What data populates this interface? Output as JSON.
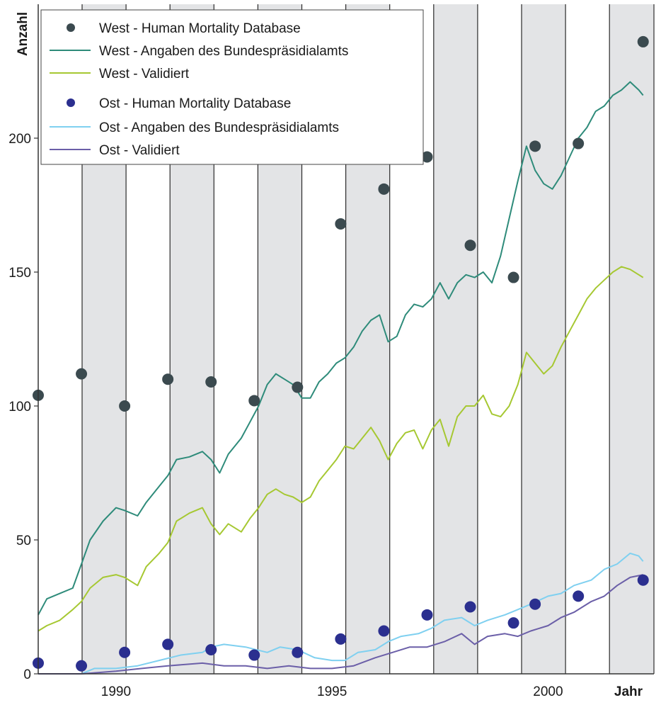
{
  "chart_data": {
    "type": "line",
    "title": "",
    "xlabel": "Jahr",
    "ylabel": "Anzahl",
    "xlim": [
      1988.2,
      2002.45
    ],
    "ylim": [
      0,
      250
    ],
    "x_ticks": [
      {
        "value": 1990,
        "label": "1990"
      },
      {
        "value": 1995,
        "label": "1995"
      },
      {
        "value": 2000,
        "label": "2000"
      }
    ],
    "y_ticks": [
      {
        "value": 0,
        "label": "0"
      },
      {
        "value": 50,
        "label": "50"
      },
      {
        "value": 100,
        "label": "100"
      },
      {
        "value": 150,
        "label": "150"
      },
      {
        "value": 200,
        "label": "200"
      }
    ],
    "grid": "vertical lines each half-year, alternating grey and white bands",
    "legend_position": "top-left",
    "series": [
      {
        "name": "West - Human Mortality Database",
        "kind": "points",
        "color": "#3b4a4f",
        "points": [
          [
            1988.2,
            104
          ],
          [
            1989.2,
            112
          ],
          [
            1990.2,
            100
          ],
          [
            1991.2,
            110
          ],
          [
            1992.2,
            109
          ],
          [
            1993.2,
            102
          ],
          [
            1994.2,
            107
          ],
          [
            1995.2,
            168
          ],
          [
            1996.2,
            181
          ],
          [
            1997.2,
            193
          ],
          [
            1998.2,
            160
          ],
          [
            1999.2,
            148
          ],
          [
            1999.7,
            197
          ],
          [
            2000.7,
            198
          ],
          [
            2002.2,
            236
          ]
        ]
      },
      {
        "name": "West - Angaben des Bundespräsidialamts",
        "kind": "line",
        "color": "#2e8b7a",
        "points": [
          [
            1988.2,
            22
          ],
          [
            1988.4,
            28
          ],
          [
            1988.7,
            30
          ],
          [
            1989.0,
            32
          ],
          [
            1989.2,
            41
          ],
          [
            1989.4,
            50
          ],
          [
            1989.7,
            57
          ],
          [
            1990.0,
            62
          ],
          [
            1990.2,
            61
          ],
          [
            1990.5,
            59
          ],
          [
            1990.7,
            64
          ],
          [
            1991.0,
            70
          ],
          [
            1991.2,
            74
          ],
          [
            1991.4,
            80
          ],
          [
            1991.7,
            81
          ],
          [
            1992.0,
            83
          ],
          [
            1992.2,
            80
          ],
          [
            1992.4,
            75
          ],
          [
            1992.6,
            82
          ],
          [
            1992.9,
            88
          ],
          [
            1993.1,
            94
          ],
          [
            1993.3,
            100
          ],
          [
            1993.5,
            108
          ],
          [
            1993.7,
            112
          ],
          [
            1993.9,
            110
          ],
          [
            1994.1,
            108
          ],
          [
            1994.3,
            103
          ],
          [
            1994.5,
            103
          ],
          [
            1994.7,
            109
          ],
          [
            1994.9,
            112
          ],
          [
            1995.1,
            116
          ],
          [
            1995.3,
            118
          ],
          [
            1995.5,
            122
          ],
          [
            1995.7,
            128
          ],
          [
            1995.9,
            132
          ],
          [
            1996.1,
            134
          ],
          [
            1996.3,
            124
          ],
          [
            1996.5,
            126
          ],
          [
            1996.7,
            134
          ],
          [
            1996.9,
            138
          ],
          [
            1997.1,
            137
          ],
          [
            1997.3,
            140
          ],
          [
            1997.5,
            146
          ],
          [
            1997.7,
            140
          ],
          [
            1997.9,
            146
          ],
          [
            1998.1,
            149
          ],
          [
            1998.3,
            148
          ],
          [
            1998.5,
            150
          ],
          [
            1998.7,
            146
          ],
          [
            1998.9,
            156
          ],
          [
            1999.1,
            170
          ],
          [
            1999.3,
            184
          ],
          [
            1999.5,
            197
          ],
          [
            1999.7,
            188
          ],
          [
            1999.9,
            183
          ],
          [
            2000.1,
            181
          ],
          [
            2000.3,
            186
          ],
          [
            2000.5,
            193
          ],
          [
            2000.7,
            200
          ],
          [
            2000.9,
            204
          ],
          [
            2001.1,
            210
          ],
          [
            2001.3,
            212
          ],
          [
            2001.5,
            216
          ],
          [
            2001.7,
            218
          ],
          [
            2001.9,
            221
          ],
          [
            2002.1,
            218
          ],
          [
            2002.2,
            216
          ]
        ]
      },
      {
        "name": "West - Validiert",
        "kind": "line",
        "color": "#a6c832",
        "points": [
          [
            1988.2,
            16
          ],
          [
            1988.4,
            18
          ],
          [
            1988.7,
            20
          ],
          [
            1989.0,
            24
          ],
          [
            1989.2,
            27
          ],
          [
            1989.4,
            32
          ],
          [
            1989.7,
            36
          ],
          [
            1990.0,
            37
          ],
          [
            1990.2,
            36
          ],
          [
            1990.5,
            33
          ],
          [
            1990.7,
            40
          ],
          [
            1991.0,
            45
          ],
          [
            1991.2,
            49
          ],
          [
            1991.4,
            57
          ],
          [
            1991.7,
            60
          ],
          [
            1992.0,
            62
          ],
          [
            1992.2,
            56
          ],
          [
            1992.4,
            52
          ],
          [
            1992.6,
            56
          ],
          [
            1992.9,
            53
          ],
          [
            1993.1,
            58
          ],
          [
            1993.3,
            62
          ],
          [
            1993.5,
            67
          ],
          [
            1993.7,
            69
          ],
          [
            1993.9,
            67
          ],
          [
            1994.1,
            66
          ],
          [
            1994.3,
            64
          ],
          [
            1994.5,
            66
          ],
          [
            1994.7,
            72
          ],
          [
            1994.9,
            76
          ],
          [
            1995.1,
            80
          ],
          [
            1995.3,
            85
          ],
          [
            1995.5,
            84
          ],
          [
            1995.7,
            88
          ],
          [
            1995.9,
            92
          ],
          [
            1996.1,
            87
          ],
          [
            1996.3,
            80
          ],
          [
            1996.5,
            86
          ],
          [
            1996.7,
            90
          ],
          [
            1996.9,
            91
          ],
          [
            1997.1,
            84
          ],
          [
            1997.3,
            91
          ],
          [
            1997.5,
            95
          ],
          [
            1997.7,
            85
          ],
          [
            1997.9,
            96
          ],
          [
            1998.1,
            100
          ],
          [
            1998.3,
            100
          ],
          [
            1998.5,
            104
          ],
          [
            1998.7,
            97
          ],
          [
            1998.9,
            96
          ],
          [
            1999.1,
            100
          ],
          [
            1999.3,
            108
          ],
          [
            1999.5,
            120
          ],
          [
            1999.7,
            116
          ],
          [
            1999.9,
            112
          ],
          [
            2000.1,
            115
          ],
          [
            2000.3,
            122
          ],
          [
            2000.5,
            128
          ],
          [
            2000.7,
            134
          ],
          [
            2000.9,
            140
          ],
          [
            2001.1,
            144
          ],
          [
            2001.3,
            147
          ],
          [
            2001.5,
            150
          ],
          [
            2001.7,
            152
          ],
          [
            2001.9,
            151
          ],
          [
            2002.1,
            149
          ],
          [
            2002.2,
            148
          ]
        ]
      },
      {
        "name": "Ost - Human Mortality Database",
        "kind": "points",
        "color": "#2b2f8f",
        "points": [
          [
            1988.2,
            4
          ],
          [
            1989.2,
            3
          ],
          [
            1990.2,
            8
          ],
          [
            1991.2,
            11
          ],
          [
            1992.2,
            9
          ],
          [
            1993.2,
            7
          ],
          [
            1994.2,
            8
          ],
          [
            1995.2,
            13
          ],
          [
            1996.2,
            16
          ],
          [
            1997.2,
            22
          ],
          [
            1998.2,
            25
          ],
          [
            1999.2,
            19
          ],
          [
            1999.7,
            26
          ],
          [
            2000.7,
            29
          ],
          [
            2002.2,
            35
          ]
        ]
      },
      {
        "name": "Ost - Angaben des Bundespräsidialamts",
        "kind": "line",
        "color": "#7fd0f0",
        "points": [
          [
            1988.2,
            0
          ],
          [
            1989.2,
            0
          ],
          [
            1989.5,
            2
          ],
          [
            1990.0,
            2
          ],
          [
            1990.5,
            3
          ],
          [
            1991.0,
            5
          ],
          [
            1991.5,
            7
          ],
          [
            1992.0,
            8
          ],
          [
            1992.2,
            10
          ],
          [
            1992.5,
            11
          ],
          [
            1993.0,
            10
          ],
          [
            1993.5,
            8
          ],
          [
            1993.8,
            10
          ],
          [
            1994.2,
            9
          ],
          [
            1994.6,
            6
          ],
          [
            1995.0,
            5
          ],
          [
            1995.3,
            5
          ],
          [
            1995.6,
            8
          ],
          [
            1996.0,
            9
          ],
          [
            1996.3,
            12
          ],
          [
            1996.6,
            14
          ],
          [
            1997.0,
            15
          ],
          [
            1997.3,
            17
          ],
          [
            1997.6,
            20
          ],
          [
            1998.0,
            21
          ],
          [
            1998.3,
            18
          ],
          [
            1998.6,
            20
          ],
          [
            1999.0,
            22
          ],
          [
            1999.3,
            24
          ],
          [
            1999.6,
            26
          ],
          [
            2000.0,
            29
          ],
          [
            2000.3,
            30
          ],
          [
            2000.6,
            33
          ],
          [
            2001.0,
            35
          ],
          [
            2001.3,
            39
          ],
          [
            2001.6,
            41
          ],
          [
            2001.9,
            45
          ],
          [
            2002.1,
            44
          ],
          [
            2002.2,
            42
          ]
        ]
      },
      {
        "name": "Ost - Validiert",
        "kind": "line",
        "color": "#6b5fa8",
        "points": [
          [
            1988.2,
            0
          ],
          [
            1989.2,
            0
          ],
          [
            1990.0,
            1
          ],
          [
            1990.6,
            2
          ],
          [
            1991.2,
            3
          ],
          [
            1992.0,
            4
          ],
          [
            1992.5,
            3
          ],
          [
            1993.0,
            3
          ],
          [
            1993.5,
            2
          ],
          [
            1994.0,
            3
          ],
          [
            1994.5,
            2
          ],
          [
            1995.0,
            2
          ],
          [
            1995.5,
            3
          ],
          [
            1996.0,
            6
          ],
          [
            1996.4,
            8
          ],
          [
            1996.8,
            10
          ],
          [
            1997.2,
            10
          ],
          [
            1997.6,
            12
          ],
          [
            1998.0,
            15
          ],
          [
            1998.3,
            11
          ],
          [
            1998.6,
            14
          ],
          [
            1999.0,
            15
          ],
          [
            1999.3,
            14
          ],
          [
            1999.6,
            16
          ],
          [
            2000.0,
            18
          ],
          [
            2000.3,
            21
          ],
          [
            2000.6,
            23
          ],
          [
            2001.0,
            27
          ],
          [
            2001.3,
            29
          ],
          [
            2001.6,
            33
          ],
          [
            2001.9,
            36
          ],
          [
            2002.2,
            37
          ]
        ]
      }
    ]
  }
}
